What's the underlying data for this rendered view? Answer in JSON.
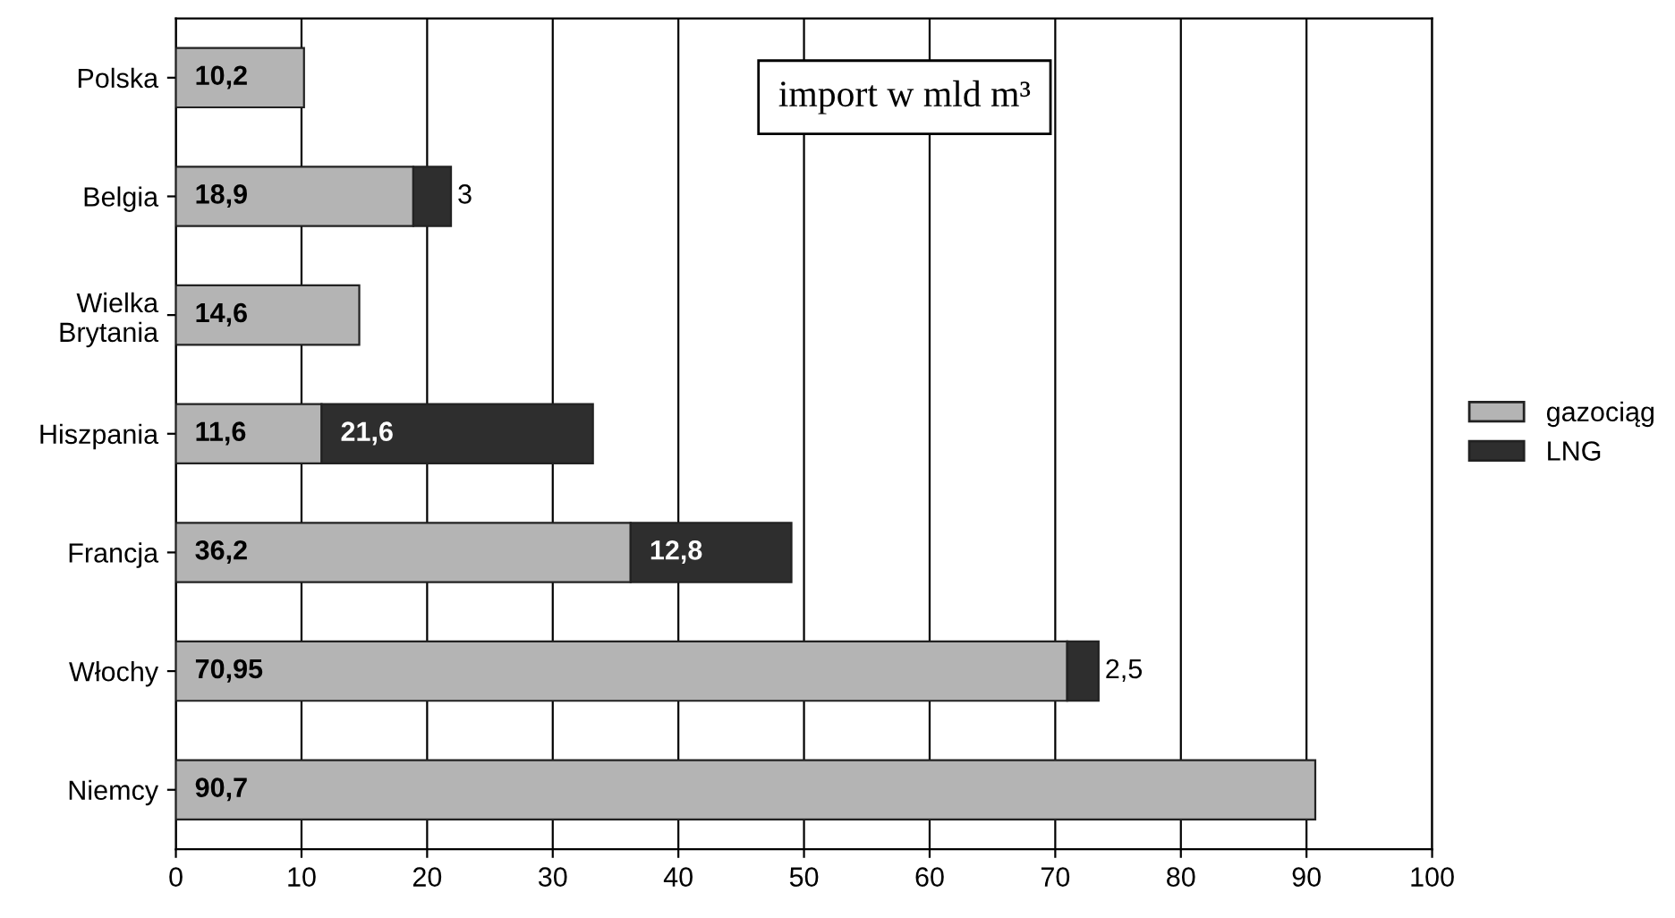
{
  "chart_data": {
    "type": "bar",
    "orientation": "horizontal",
    "stacked": true,
    "categories": [
      "Polska",
      "Belgia",
      "Wielka\nBrytania",
      "Hiszpania",
      "Francja",
      "Włochy",
      "Niemcy"
    ],
    "series": [
      {
        "name": "gazociąg",
        "color": "#b4b4b4",
        "values": [
          10.2,
          18.9,
          14.6,
          11.6,
          36.2,
          70.95,
          90.7
        ],
        "value_labels": [
          "10,2",
          "18,9",
          "14,6",
          "11,6",
          "36,2",
          "70,95",
          "90,7"
        ]
      },
      {
        "name": "LNG",
        "color": "#2e2e2e",
        "values": [
          null,
          3,
          null,
          21.6,
          12.8,
          2.5,
          null
        ],
        "value_labels": [
          null,
          "3",
          null,
          "21,6",
          "12,8",
          "2,5",
          null
        ]
      }
    ],
    "xlim": [
      0,
      100
    ],
    "xticks": [
      0,
      10,
      20,
      30,
      40,
      50,
      60,
      70,
      80,
      90,
      100
    ],
    "grid": "x",
    "legend": "right",
    "annotations": [
      "import w mld m³"
    ]
  }
}
